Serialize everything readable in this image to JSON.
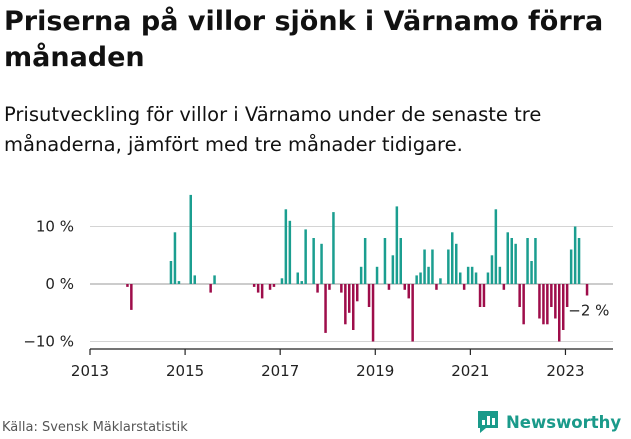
{
  "title": "Priserna på villor sjönk i Värnamo förra månaden",
  "subtitle": "Prisutveckling för villor i Värnamo under de senaste tre månaderna, jämfört med tre månader tidigare.",
  "source": "Källa: Svensk Mäklarstatistik",
  "brand": {
    "name": "Newsworthy",
    "color": "#1a9a8a"
  },
  "chart_data": {
    "type": "bar",
    "x_unit": "month",
    "y_unit": "%",
    "xlim": [
      "2013-01",
      "2023-12"
    ],
    "ylim": [
      -12,
      18
    ],
    "x_ticks": [
      "2013",
      "2015",
      "2017",
      "2019",
      "2021",
      "2023"
    ],
    "y_ticks": [
      {
        "value": -10,
        "label": "−10 %"
      },
      {
        "value": 0,
        "label": "0 %"
      },
      {
        "value": 10,
        "label": "10 %"
      }
    ],
    "grid": "horizontal",
    "positive_color": "#1b9e90",
    "negative_color": "#9e0d4a",
    "annotation": {
      "x": "2023-06",
      "value": -2,
      "label": "−2 %"
    },
    "x": [
      "2013-10",
      "2013-11",
      "2014-09",
      "2014-10",
      "2014-11",
      "2015-02",
      "2015-03",
      "2015-07",
      "2015-08",
      "2016-06",
      "2016-07",
      "2016-08",
      "2016-10",
      "2016-11",
      "2017-01",
      "2017-02",
      "2017-03",
      "2017-05",
      "2017-06",
      "2017-07",
      "2017-09",
      "2017-10",
      "2017-11",
      "2017-12",
      "2018-01",
      "2018-02",
      "2018-04",
      "2018-05",
      "2018-06",
      "2018-07",
      "2018-08",
      "2018-09",
      "2018-10",
      "2018-11",
      "2018-12",
      "2019-01",
      "2019-03",
      "2019-04",
      "2019-05",
      "2019-06",
      "2019-07",
      "2019-08",
      "2019-09",
      "2019-10",
      "2019-11",
      "2019-12",
      "2020-01",
      "2020-02",
      "2020-03",
      "2020-04",
      "2020-05",
      "2020-07",
      "2020-08",
      "2020-09",
      "2020-10",
      "2020-11",
      "2020-12",
      "2021-01",
      "2021-02",
      "2021-03",
      "2021-04",
      "2021-05",
      "2021-06",
      "2021-07",
      "2021-08",
      "2021-09",
      "2021-10",
      "2021-11",
      "2021-12",
      "2022-01",
      "2022-02",
      "2022-03",
      "2022-04",
      "2022-05",
      "2022-06",
      "2022-07",
      "2022-08",
      "2022-09",
      "2022-10",
      "2022-11",
      "2022-12",
      "2023-01",
      "2023-02",
      "2023-03",
      "2023-04",
      "2023-06"
    ],
    "values": [
      -0.5,
      -4.5,
      4,
      9,
      0.5,
      15.5,
      1.5,
      -1.5,
      1.5,
      -0.5,
      -1.5,
      -2.5,
      -1,
      -0.5,
      1,
      13,
      11,
      2,
      0.5,
      9.5,
      8,
      -1.5,
      7,
      -8.5,
      -1,
      12.5,
      -1.5,
      -7,
      -5,
      -8,
      -3,
      3,
      8,
      -4,
      -10,
      3,
      8,
      -1,
      5,
      13.5,
      8,
      -1,
      -2.5,
      -10,
      1.5,
      2,
      6,
      3,
      6,
      -1,
      1,
      6,
      9,
      7,
      2,
      -1,
      3,
      3,
      2,
      -4,
      -4,
      2,
      5,
      13,
      3,
      -1,
      9,
      8,
      7,
      -4,
      -7,
      8,
      4,
      8,
      -6,
      -7,
      -7,
      -4,
      -6,
      -10,
      -8,
      -4,
      6,
      10,
      8,
      -2
    ]
  }
}
